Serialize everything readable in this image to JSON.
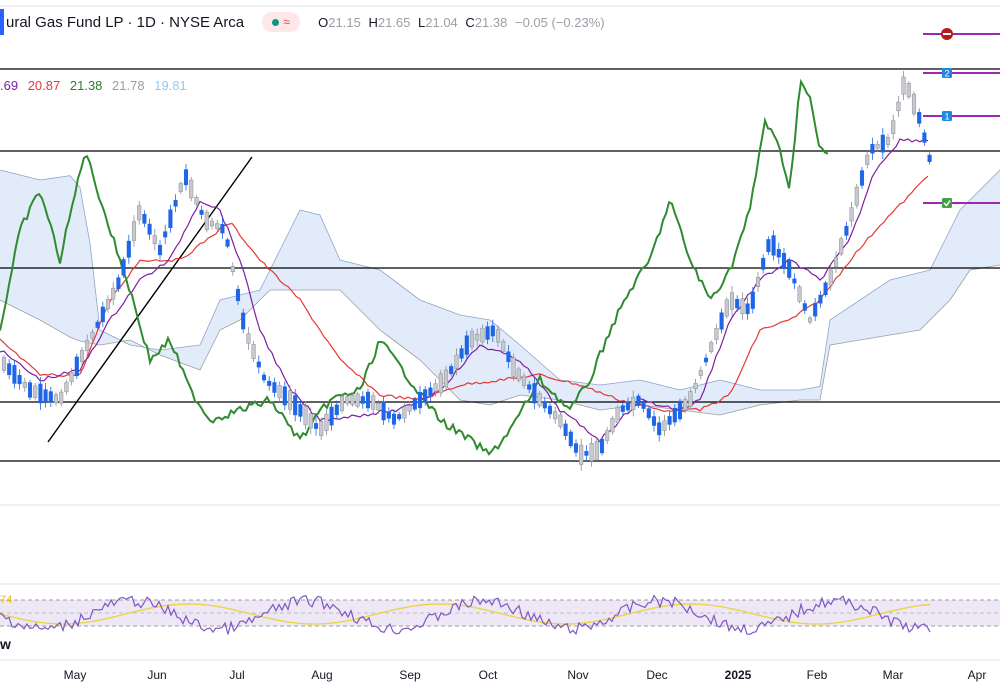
{
  "header": {
    "title": "ural Gas Fund LP · 1D · NYSE Arca",
    "badge": "≈",
    "o_label": "O",
    "o_value": "21.15",
    "h_label": "H",
    "h_value": "21.65",
    "l_label": "L",
    "l_value": "21.04",
    "c_label": "C",
    "c_value": "21.38",
    "change": "−0.05 (−0.23%)"
  },
  "ichimoku_values": [
    {
      "text": ".69",
      "color": "#7b1fa2"
    },
    {
      "text": "20.87",
      "color": "#e53935"
    },
    {
      "text": "21.38",
      "color": "#2e7d32"
    },
    {
      "text": "21.78",
      "color": "#9e9e9e"
    },
    {
      "text": "19.81",
      "color": "#90caf9"
    }
  ],
  "rsi_fragment": "74",
  "left_fragment": "w",
  "x_axis": [
    {
      "label": "May",
      "bold": false
    },
    {
      "label": "Jun",
      "bold": false
    },
    {
      "label": "Jul",
      "bold": false
    },
    {
      "label": "Aug",
      "bold": false
    },
    {
      "label": "Sep",
      "bold": false
    },
    {
      "label": "Oct",
      "bold": false
    },
    {
      "label": "Nov",
      "bold": false
    },
    {
      "label": "Dec",
      "bold": false
    },
    {
      "label": "2025",
      "bold": true
    },
    {
      "label": "Feb",
      "bold": false
    },
    {
      "label": "Mar",
      "bold": false
    },
    {
      "label": "Apr",
      "bold": false
    }
  ],
  "order_markers": [
    {
      "icon": "stop-icon",
      "color": "#b71c1c",
      "line_color": "#9c27b0"
    },
    {
      "label": "2",
      "color": "#1e88e5",
      "line_color": "#9c27b0"
    },
    {
      "label": "1",
      "color": "#1e88e5",
      "line_color": "#9c27b0"
    },
    {
      "icon": "check-icon",
      "color": "#43a047",
      "line_color": "#9c27b0"
    }
  ],
  "colors": {
    "candle_up": "#c7c9cf",
    "candle_down": "#1e66e6",
    "chikou": "#2e8b2e",
    "kijun": "#e53935",
    "tenkan": "#7b1fa2",
    "cloud_bull": "#dbe6f9",
    "cloud_bear": "#e4e5e8",
    "rsi_line": "#7e57c2",
    "rsi_ma": "#ebd43c",
    "rsi_band": "#ede7f6"
  },
  "chart_data": {
    "type": "candlestick",
    "series": [
      "candles",
      "ichimoku cloud",
      "tenkan",
      "kijun",
      "chikou",
      "RSI"
    ]
  }
}
